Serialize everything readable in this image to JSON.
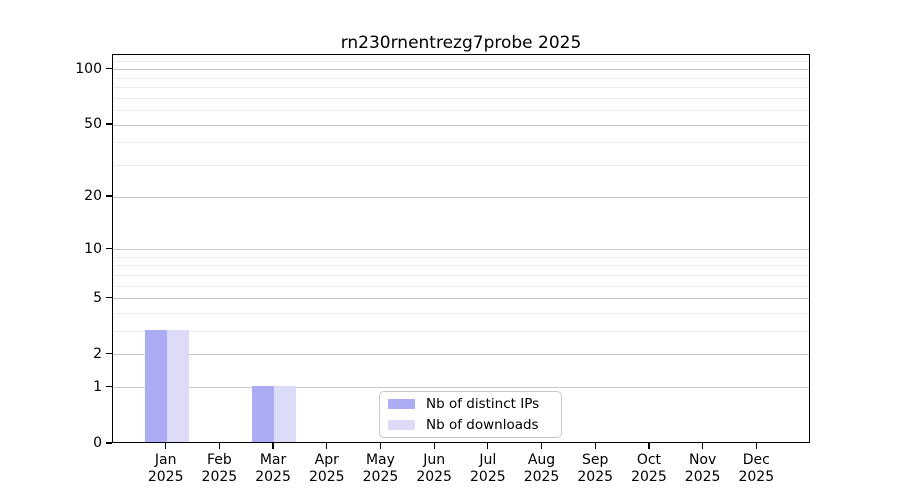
{
  "chart_data": {
    "type": "bar",
    "title": "rn230rnentrezg7probe 2025",
    "categories": [
      "Jan 2025",
      "Feb 2025",
      "Mar 2025",
      "Apr 2025",
      "May 2025",
      "Jun 2025",
      "Jul 2025",
      "Aug 2025",
      "Sep 2025",
      "Oct 2025",
      "Nov 2025",
      "Dec 2025"
    ],
    "series": [
      {
        "name": "Nb of distinct IPs",
        "color": "#acacf4",
        "values": [
          3,
          0,
          1,
          0,
          0,
          0,
          0,
          0,
          0,
          0,
          0,
          0
        ]
      },
      {
        "name": "Nb of downloads",
        "color": "#dcdcf8",
        "values": [
          3,
          0,
          1,
          0,
          0,
          0,
          0,
          0,
          0,
          0,
          0,
          0
        ]
      }
    ],
    "xlabel": "",
    "ylabel": "",
    "yscale": "log1p",
    "ylim": [
      0,
      120
    ],
    "y_major_ticks": [
      0,
      1,
      2,
      5,
      10,
      20,
      50,
      100
    ],
    "y_minor_gridlines": [
      3,
      4,
      6,
      7,
      8,
      9,
      30,
      40,
      60,
      70,
      80,
      90,
      110
    ],
    "grid": true,
    "legend_position": "lower-center-inside",
    "bar_grouping": "paired per month, distinct IPs left, downloads right"
  },
  "colors": {
    "major_grid": "#c8c8c8",
    "minor_grid": "#ececec",
    "axis_frame": "#000000",
    "legend_border": "#c8c8c8",
    "background": "#ffffff"
  }
}
